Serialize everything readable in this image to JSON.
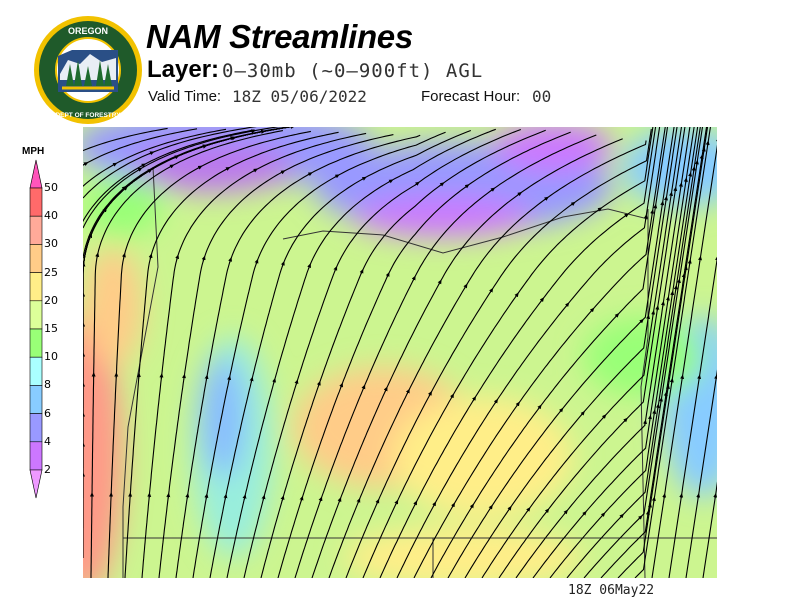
{
  "header": {
    "title": "NAM Streamlines",
    "layer_label": "Layer:",
    "layer_value": "0–30mb (~0–900ft) AGL",
    "valid_time_label": "Valid Time:",
    "valid_time_value": "18Z 05/06/2022",
    "forecast_hour_label": "Forecast Hour:",
    "forecast_hour_value": "00"
  },
  "logo": {
    "text_top": "OREGON",
    "text_bottom": "DEPARTMENT OF FORESTRY",
    "ring_color": "#1f5a2a",
    "rim_color": "#f2c200"
  },
  "legend": {
    "units": "MPH",
    "ticks": [
      "50",
      "40",
      "30",
      "25",
      "20",
      "15",
      "10",
      "8",
      "6",
      "4",
      "2"
    ],
    "colors": [
      "#ff6a6a",
      "#ffaa99",
      "#ffcc88",
      "#ffee88",
      "#ddff99",
      "#99ff77",
      "#aaffff",
      "#88ccff",
      "#9999ff",
      "#cc77ff"
    ],
    "over_color": "#ff55bb",
    "under_color": "#ee99ff"
  },
  "map": {
    "footer_stamp": "18Z 06May22"
  }
}
